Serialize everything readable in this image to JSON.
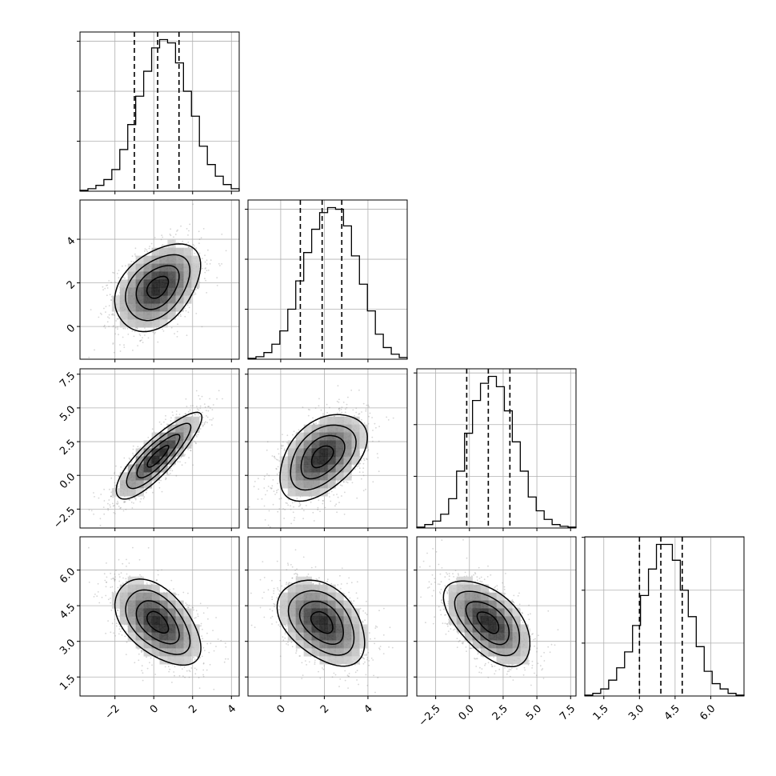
{
  "figure": {
    "background": "#ffffff",
    "grid": true
  },
  "chart_data": {
    "type": "corner",
    "parameters": 4,
    "style": {
      "histogram_color": "#000000",
      "quantile_line_color": "#000000",
      "contour_color": "#000000",
      "scatter_color": "#888888",
      "grid_color": "#b0b0b0",
      "density_colormap": [
        "#ffffff",
        "#000000"
      ]
    },
    "axes": [
      {
        "lim": [
          -3.8,
          4.4
        ],
        "ticks": [
          -2,
          0,
          2,
          4
        ],
        "tick_labels": [
          "−2",
          "0",
          "2",
          "4"
        ]
      },
      {
        "lim": [
          -1.5,
          5.8
        ],
        "ticks": [
          0,
          2,
          4
        ],
        "tick_labels": [
          "0",
          "2",
          "4"
        ]
      },
      {
        "lim": [
          -3.9,
          7.9
        ],
        "ticks": [
          -2.5,
          0,
          2.5,
          5,
          7.5
        ],
        "tick_labels": [
          "−2.5",
          "0.0",
          "2.5",
          "5.0",
          "7.5"
        ]
      },
      {
        "lim": [
          0.7,
          7.4
        ],
        "ticks": [
          1.5,
          3.0,
          4.5,
          6.0
        ],
        "tick_labels": [
          "1.5",
          "3.0",
          "4.5",
          "6.0"
        ]
      }
    ],
    "marginals": [
      {
        "param": 0,
        "bins": 20,
        "quantiles": [
          -1.0,
          0.2,
          1.3
        ],
        "hist_counts": [
          0.5,
          1.5,
          3.5,
          7,
          13,
          25,
          40,
          57,
          72,
          86,
          91,
          89,
          77,
          60,
          45,
          27,
          16,
          9,
          4,
          1.5
        ],
        "hist_ticks": [
          30,
          60,
          90
        ]
      },
      {
        "param": 1,
        "bins": 20,
        "quantiles": [
          0.9,
          1.9,
          2.8
        ],
        "hist_counts": [
          0.5,
          1.5,
          4,
          9,
          17,
          30,
          47,
          64,
          78,
          88,
          91,
          90,
          80,
          62,
          45,
          29,
          15,
          7,
          3,
          1
        ],
        "hist_ticks": [
          30,
          60,
          90
        ]
      },
      {
        "param": 2,
        "bins": 20,
        "quantiles": [
          -0.2,
          1.4,
          3.0
        ],
        "hist_counts": [
          0.5,
          2,
          4,
          8,
          17,
          33,
          55,
          74,
          84,
          88,
          82,
          68,
          50,
          33,
          18,
          10,
          5,
          2,
          1,
          0.5
        ],
        "hist_ticks": [
          30,
          60,
          90
        ]
      },
      {
        "param": 3,
        "bins": 20,
        "quantiles": [
          3.0,
          3.9,
          4.8
        ],
        "hist_counts": [
          0.5,
          1.5,
          4,
          9,
          16,
          25,
          40,
          57,
          72,
          86,
          86,
          77,
          60,
          45,
          28,
          14,
          7,
          4,
          1.5,
          0.5
        ],
        "hist_ticks": [
          30,
          60,
          90
        ]
      }
    ],
    "pairs": [
      {
        "x": 0,
        "y": 1,
        "mean": [
          0.2,
          1.8
        ],
        "sd": [
          1.1,
          1.0
        ],
        "rho": 0.4
      },
      {
        "x": 0,
        "y": 2,
        "mean": [
          0.2,
          1.4
        ],
        "sd": [
          1.1,
          1.6
        ],
        "rho": 0.85
      },
      {
        "x": 1,
        "y": 2,
        "mean": [
          1.9,
          1.4
        ],
        "sd": [
          1.0,
          1.6
        ],
        "rho": 0.45
      },
      {
        "x": 0,
        "y": 3,
        "mean": [
          0.2,
          3.8
        ],
        "sd": [
          1.1,
          0.9
        ],
        "rho": -0.5
      },
      {
        "x": 1,
        "y": 3,
        "mean": [
          1.9,
          3.8
        ],
        "sd": [
          1.0,
          0.9
        ],
        "rho": -0.4
      },
      {
        "x": 2,
        "y": 3,
        "mean": [
          1.4,
          3.8
        ],
        "sd": [
          1.6,
          0.9
        ],
        "rho": -0.55
      }
    ],
    "contour_levels_sigma": [
      0.5,
      1.0,
      1.5,
      2.0
    ]
  }
}
